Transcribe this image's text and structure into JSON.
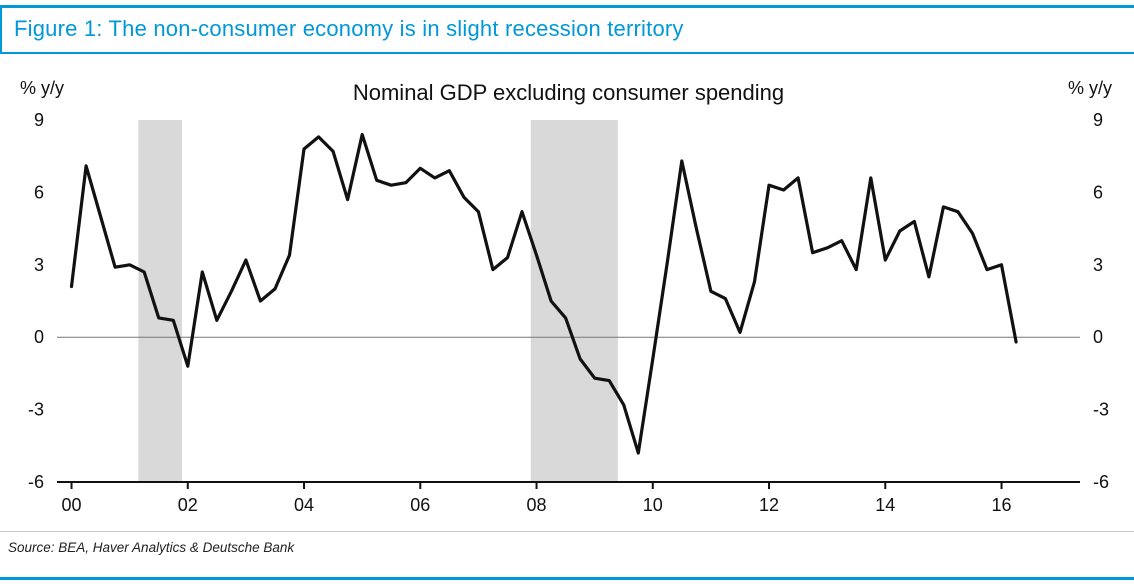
{
  "header": {
    "figure_title": "Figure 1: The non-consumer economy is in slight recession territory",
    "accent_color": "#0098d8"
  },
  "footer": {
    "source": "Source: BEA, Haver Analytics & Deutsche Bank"
  },
  "chart_data": {
    "type": "line",
    "title": "Nominal GDP excluding consumer spending",
    "y_axis_label_left": "% y/y",
    "y_axis_label_right": "% y/y",
    "xlabel": "",
    "ylabel": "% y/y",
    "ylim": [
      -6,
      9
    ],
    "xlim": [
      1999.75,
      2017.35
    ],
    "y_ticks": [
      9,
      6,
      3,
      0,
      -3,
      -6
    ],
    "x_ticks": [
      {
        "value": 2000,
        "label": "00"
      },
      {
        "value": 2002,
        "label": "02"
      },
      {
        "value": 2004,
        "label": "04"
      },
      {
        "value": 2006,
        "label": "06"
      },
      {
        "value": 2008,
        "label": "08"
      },
      {
        "value": 2010,
        "label": "10"
      },
      {
        "value": 2012,
        "label": "12"
      },
      {
        "value": 2014,
        "label": "14"
      },
      {
        "value": 2016,
        "label": "16"
      }
    ],
    "grid": false,
    "legend": "none",
    "zero_line": 0,
    "line_color": "#111111",
    "band_color": "#d9d9d9",
    "recession_bands": [
      {
        "from": 2001.15,
        "to": 2001.9
      },
      {
        "from": 2007.9,
        "to": 2009.4
      }
    ],
    "series": [
      {
        "name": "Nominal GDP excluding consumer spending",
        "x": [
          2000,
          2000.25,
          2000.5,
          2000.75,
          2001,
          2001.25,
          2001.5,
          2001.75,
          2002,
          2002.25,
          2002.5,
          2002.75,
          2003,
          2003.25,
          2003.5,
          2003.75,
          2004,
          2004.25,
          2004.5,
          2004.75,
          2005,
          2005.25,
          2005.5,
          2005.75,
          2006,
          2006.25,
          2006.5,
          2006.75,
          2007,
          2007.25,
          2007.5,
          2007.75,
          2008,
          2008.25,
          2008.5,
          2008.75,
          2009,
          2009.25,
          2009.5,
          2009.75,
          2010,
          2010.25,
          2010.5,
          2010.75,
          2011,
          2011.25,
          2011.5,
          2011.75,
          2012,
          2012.25,
          2012.5,
          2012.75,
          2013,
          2013.25,
          2013.5,
          2013.75,
          2014,
          2014.25,
          2014.5,
          2014.75,
          2015,
          2015.25,
          2015.5,
          2015.75,
          2016,
          2016.25
        ],
        "values": [
          2.1,
          7.1,
          5.0,
          2.9,
          3.0,
          2.7,
          0.8,
          0.7,
          -1.2,
          2.7,
          0.7,
          1.9,
          3.2,
          1.5,
          2.0,
          3.4,
          7.8,
          8.3,
          7.7,
          5.7,
          8.4,
          6.5,
          6.3,
          6.4,
          7.0,
          6.6,
          6.9,
          5.8,
          5.2,
          2.8,
          3.3,
          5.2,
          3.4,
          1.5,
          0.8,
          -0.9,
          -1.7,
          -1.8,
          -2.8,
          -4.8,
          -0.9,
          3.1,
          7.3,
          4.5,
          1.9,
          1.6,
          0.2,
          2.3,
          6.3,
          6.1,
          6.6,
          3.5,
          3.7,
          4.0,
          2.8,
          6.6,
          3.2,
          4.4,
          4.8,
          2.5,
          5.4,
          5.2,
          4.3,
          2.8,
          3.0,
          -0.2
        ]
      }
    ]
  }
}
